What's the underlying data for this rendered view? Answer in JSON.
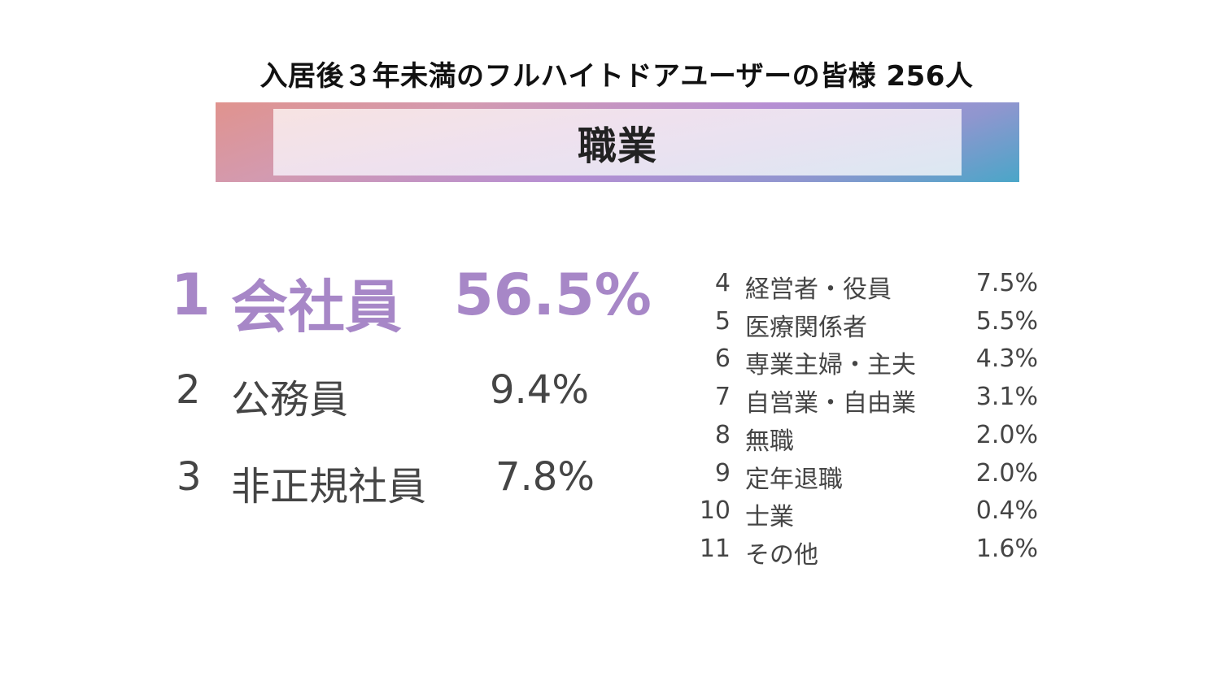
{
  "header": {
    "subtitle": "入居後３年未満のフルハイトドアユーザーの皆様 256人",
    "title": "職業"
  },
  "top_ranks": [
    {
      "rank": "1",
      "name": "会社員",
      "percent": "56.5%"
    },
    {
      "rank": "2",
      "name": "公務員",
      "percent": "9.4%"
    },
    {
      "rank": "3",
      "name": "非正規社員",
      "percent": "7.8%"
    }
  ],
  "other_ranks": [
    {
      "rank": "4",
      "name": "経営者・役員",
      "percent": "7.5%"
    },
    {
      "rank": "5",
      "name": "医療関係者",
      "percent": "5.5%"
    },
    {
      "rank": "6",
      "name": "専業主婦・主夫",
      "percent": "4.3%"
    },
    {
      "rank": "7",
      "name": "自営業・自由業",
      "percent": "3.1%"
    },
    {
      "rank": "8",
      "name": "無職",
      "percent": "2.0%"
    },
    {
      "rank": "9",
      "name": "定年退職",
      "percent": "2.0%"
    },
    {
      "rank": "10",
      "name": "士業",
      "percent": "0.4%"
    },
    {
      "rank": "11",
      "name": "その他",
      "percent": "1.6%"
    }
  ],
  "colors": {
    "highlight": "#a787c7",
    "text": "#454545"
  }
}
